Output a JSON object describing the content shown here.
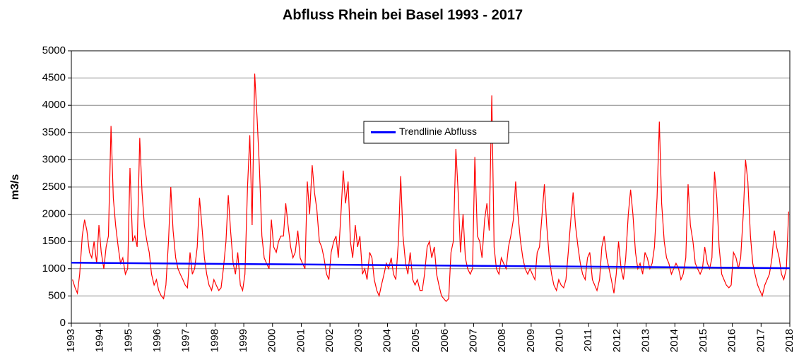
{
  "chart_data": {
    "type": "line",
    "title": "Abfluss Rhein bei Basel 1993 - 2017",
    "ylabel": "m3/s",
    "xlim": [
      1993,
      2018
    ],
    "xticks": [
      1993,
      1994,
      1995,
      1996,
      1997,
      1998,
      1999,
      2000,
      2001,
      2002,
      2003,
      2004,
      2005,
      2006,
      2007,
      2008,
      2009,
      2010,
      2011,
      2012,
      2013,
      2014,
      2015,
      2016,
      2017,
      2018
    ],
    "ylim": [
      0,
      5000
    ],
    "yticks": [
      0,
      500,
      1000,
      1500,
      2000,
      2500,
      3000,
      3500,
      4000,
      4500,
      5000
    ],
    "grid": true,
    "legend": "upper center",
    "series": [
      {
        "color": "#ff0000",
        "x": [
          1993.04,
          1993.13,
          1993.21,
          1993.29,
          1993.38,
          1993.46,
          1993.54,
          1993.63,
          1993.71,
          1993.79,
          1993.88,
          1993.96,
          1994.04,
          1994.13,
          1994.21,
          1994.29,
          1994.38,
          1994.46,
          1994.54,
          1994.63,
          1994.71,
          1994.79,
          1994.88,
          1994.96,
          1995.04,
          1995.13,
          1995.21,
          1995.29,
          1995.38,
          1995.46,
          1995.54,
          1995.63,
          1995.71,
          1995.79,
          1995.88,
          1995.96,
          1996.04,
          1996.13,
          1996.21,
          1996.29,
          1996.38,
          1996.46,
          1996.54,
          1996.63,
          1996.71,
          1996.79,
          1996.88,
          1996.96,
          1997.04,
          1997.13,
          1997.21,
          1997.29,
          1997.38,
          1997.46,
          1997.54,
          1997.63,
          1997.71,
          1997.79,
          1997.88,
          1997.96,
          1998.04,
          1998.13,
          1998.21,
          1998.29,
          1998.38,
          1998.46,
          1998.54,
          1998.63,
          1998.71,
          1998.79,
          1998.88,
          1998.96,
          1999.04,
          1999.13,
          1999.21,
          1999.29,
          1999.38,
          1999.46,
          1999.54,
          1999.63,
          1999.71,
          1999.79,
          1999.88,
          1999.96,
          2000.04,
          2000.13,
          2000.21,
          2000.29,
          2000.38,
          2000.46,
          2000.54,
          2000.63,
          2000.71,
          2000.79,
          2000.88,
          2000.96,
          2001.04,
          2001.13,
          2001.21,
          2001.29,
          2001.38,
          2001.46,
          2001.54,
          2001.63,
          2001.71,
          2001.79,
          2001.88,
          2001.96,
          2002.04,
          2002.13,
          2002.21,
          2002.29,
          2002.38,
          2002.46,
          2002.54,
          2002.63,
          2002.71,
          2002.79,
          2002.88,
          2002.96,
          2003.04,
          2003.13,
          2003.21,
          2003.29,
          2003.38,
          2003.46,
          2003.54,
          2003.63,
          2003.71,
          2003.79,
          2003.88,
          2003.96,
          2004.04,
          2004.13,
          2004.21,
          2004.29,
          2004.38,
          2004.46,
          2004.54,
          2004.63,
          2004.71,
          2004.79,
          2004.88,
          2004.96,
          2005.04,
          2005.13,
          2005.21,
          2005.29,
          2005.38,
          2005.46,
          2005.54,
          2005.63,
          2005.71,
          2005.79,
          2005.88,
          2005.96,
          2006.04,
          2006.13,
          2006.21,
          2006.29,
          2006.38,
          2006.46,
          2006.54,
          2006.63,
          2006.71,
          2006.79,
          2006.88,
          2006.96,
          2007.04,
          2007.13,
          2007.21,
          2007.29,
          2007.38,
          2007.46,
          2007.54,
          2007.63,
          2007.71,
          2007.79,
          2007.88,
          2007.96,
          2008.04,
          2008.13,
          2008.21,
          2008.29,
          2008.38,
          2008.46,
          2008.54,
          2008.63,
          2008.71,
          2008.79,
          2008.88,
          2008.96,
          2009.04,
          2009.13,
          2009.21,
          2009.29,
          2009.38,
          2009.46,
          2009.54,
          2009.63,
          2009.71,
          2009.79,
          2009.88,
          2009.96,
          2010.04,
          2010.13,
          2010.21,
          2010.29,
          2010.38,
          2010.46,
          2010.54,
          2010.63,
          2010.71,
          2010.79,
          2010.88,
          2010.96,
          2011.04,
          2011.13,
          2011.21,
          2011.29,
          2011.38,
          2011.46,
          2011.54,
          2011.63,
          2011.71,
          2011.79,
          2011.88,
          2011.96,
          2012.04,
          2012.13,
          2012.21,
          2012.29,
          2012.38,
          2012.46,
          2012.54,
          2012.63,
          2012.71,
          2012.79,
          2012.88,
          2012.96,
          2013.04,
          2013.13,
          2013.21,
          2013.29,
          2013.38,
          2013.46,
          2013.54,
          2013.63,
          2013.71,
          2013.79,
          2013.88,
          2013.96,
          2014.04,
          2014.13,
          2014.21,
          2014.29,
          2014.38,
          2014.46,
          2014.54,
          2014.63,
          2014.71,
          2014.79,
          2014.88,
          2014.96,
          2015.04,
          2015.13,
          2015.21,
          2015.29,
          2015.38,
          2015.46,
          2015.54,
          2015.63,
          2015.71,
          2015.79,
          2015.88,
          2015.96,
          2016.04,
          2016.13,
          2016.21,
          2016.29,
          2016.38,
          2016.46,
          2016.54,
          2016.63,
          2016.71,
          2016.79,
          2016.88,
          2016.96,
          2017.04,
          2017.13,
          2017.21,
          2017.29,
          2017.38,
          2017.46,
          2017.54,
          2017.63,
          2017.71,
          2017.79,
          2017.88,
          2017.96
        ],
        "values": [
          800,
          650,
          550,
          900,
          1600,
          1900,
          1700,
          1300,
          1200,
          1500,
          1100,
          1800,
          1300,
          1000,
          1400,
          1600,
          3620,
          2300,
          1800,
          1400,
          1100,
          1200,
          900,
          1000,
          2850,
          1500,
          1600,
          1400,
          3400,
          2400,
          1800,
          1500,
          1300,
          900,
          700,
          800,
          600,
          500,
          450,
          700,
          1500,
          2500,
          1700,
          1200,
          1000,
          900,
          800,
          700,
          650,
          1300,
          900,
          1000,
          1400,
          2300,
          1800,
          1200,
          900,
          700,
          600,
          800,
          700,
          600,
          650,
          1000,
          1500,
          2350,
          1700,
          1100,
          900,
          1300,
          700,
          600,
          900,
          2500,
          3450,
          1800,
          4580,
          3800,
          2900,
          1600,
          1200,
          1100,
          1000,
          1900,
          1400,
          1300,
          1500,
          1600,
          1600,
          2200,
          1800,
          1400,
          1200,
          1300,
          1700,
          1200,
          1100,
          1000,
          2600,
          2000,
          2900,
          2400,
          2100,
          1500,
          1400,
          1200,
          900,
          800,
          1300,
          1500,
          1600,
          1200,
          2000,
          2800,
          2200,
          2600,
          1500,
          1200,
          1800,
          1400,
          1600,
          900,
          1000,
          800,
          1300,
          1200,
          800,
          600,
          500,
          700,
          900,
          1100,
          1000,
          1200,
          900,
          800,
          1500,
          2700,
          1600,
          1100,
          900,
          1300,
          800,
          700,
          800,
          600,
          600,
          900,
          1400,
          1500,
          1200,
          1400,
          900,
          700,
          500,
          450,
          400,
          450,
          1300,
          1500,
          3200,
          2400,
          1300,
          2000,
          1200,
          1000,
          900,
          1000,
          3050,
          1600,
          1500,
          1200,
          1900,
          2200,
          1700,
          4180,
          1400,
          1000,
          900,
          1200,
          1100,
          1000,
          1400,
          1600,
          1900,
          2600,
          2000,
          1500,
          1200,
          1000,
          900,
          1000,
          900,
          800,
          1300,
          1400,
          2000,
          2550,
          1800,
          1200,
          900,
          700,
          600,
          800,
          700,
          650,
          800,
          1300,
          1900,
          2400,
          1800,
          1400,
          1100,
          900,
          800,
          1200,
          1300,
          800,
          700,
          600,
          800,
          1400,
          1600,
          1200,
          1000,
          800,
          550,
          900,
          1500,
          1000,
          800,
          1200,
          2000,
          2450,
          2000,
          1300,
          1000,
          1100,
          900,
          1300,
          1200,
          1000,
          1100,
          1400,
          2300,
          3700,
          2200,
          1500,
          1200,
          1100,
          900,
          1000,
          1100,
          1000,
          800,
          900,
          1200,
          2550,
          1800,
          1500,
          1100,
          1000,
          900,
          1000,
          1400,
          1100,
          1000,
          1200,
          2780,
          2300,
          1400,
          900,
          800,
          700,
          650,
          700,
          1300,
          1200,
          1000,
          1200,
          2000,
          3000,
          2600,
          1600,
          1100,
          900,
          700,
          600,
          500,
          700,
          800,
          900,
          1200,
          1700,
          1400,
          1200,
          900,
          800,
          1000,
          2050
        ]
      },
      {
        "name": "Trendlinie Abfluss",
        "color": "#0000ff",
        "x": [
          1993,
          2018
        ],
        "values": [
          1110,
          1010
        ]
      }
    ]
  }
}
